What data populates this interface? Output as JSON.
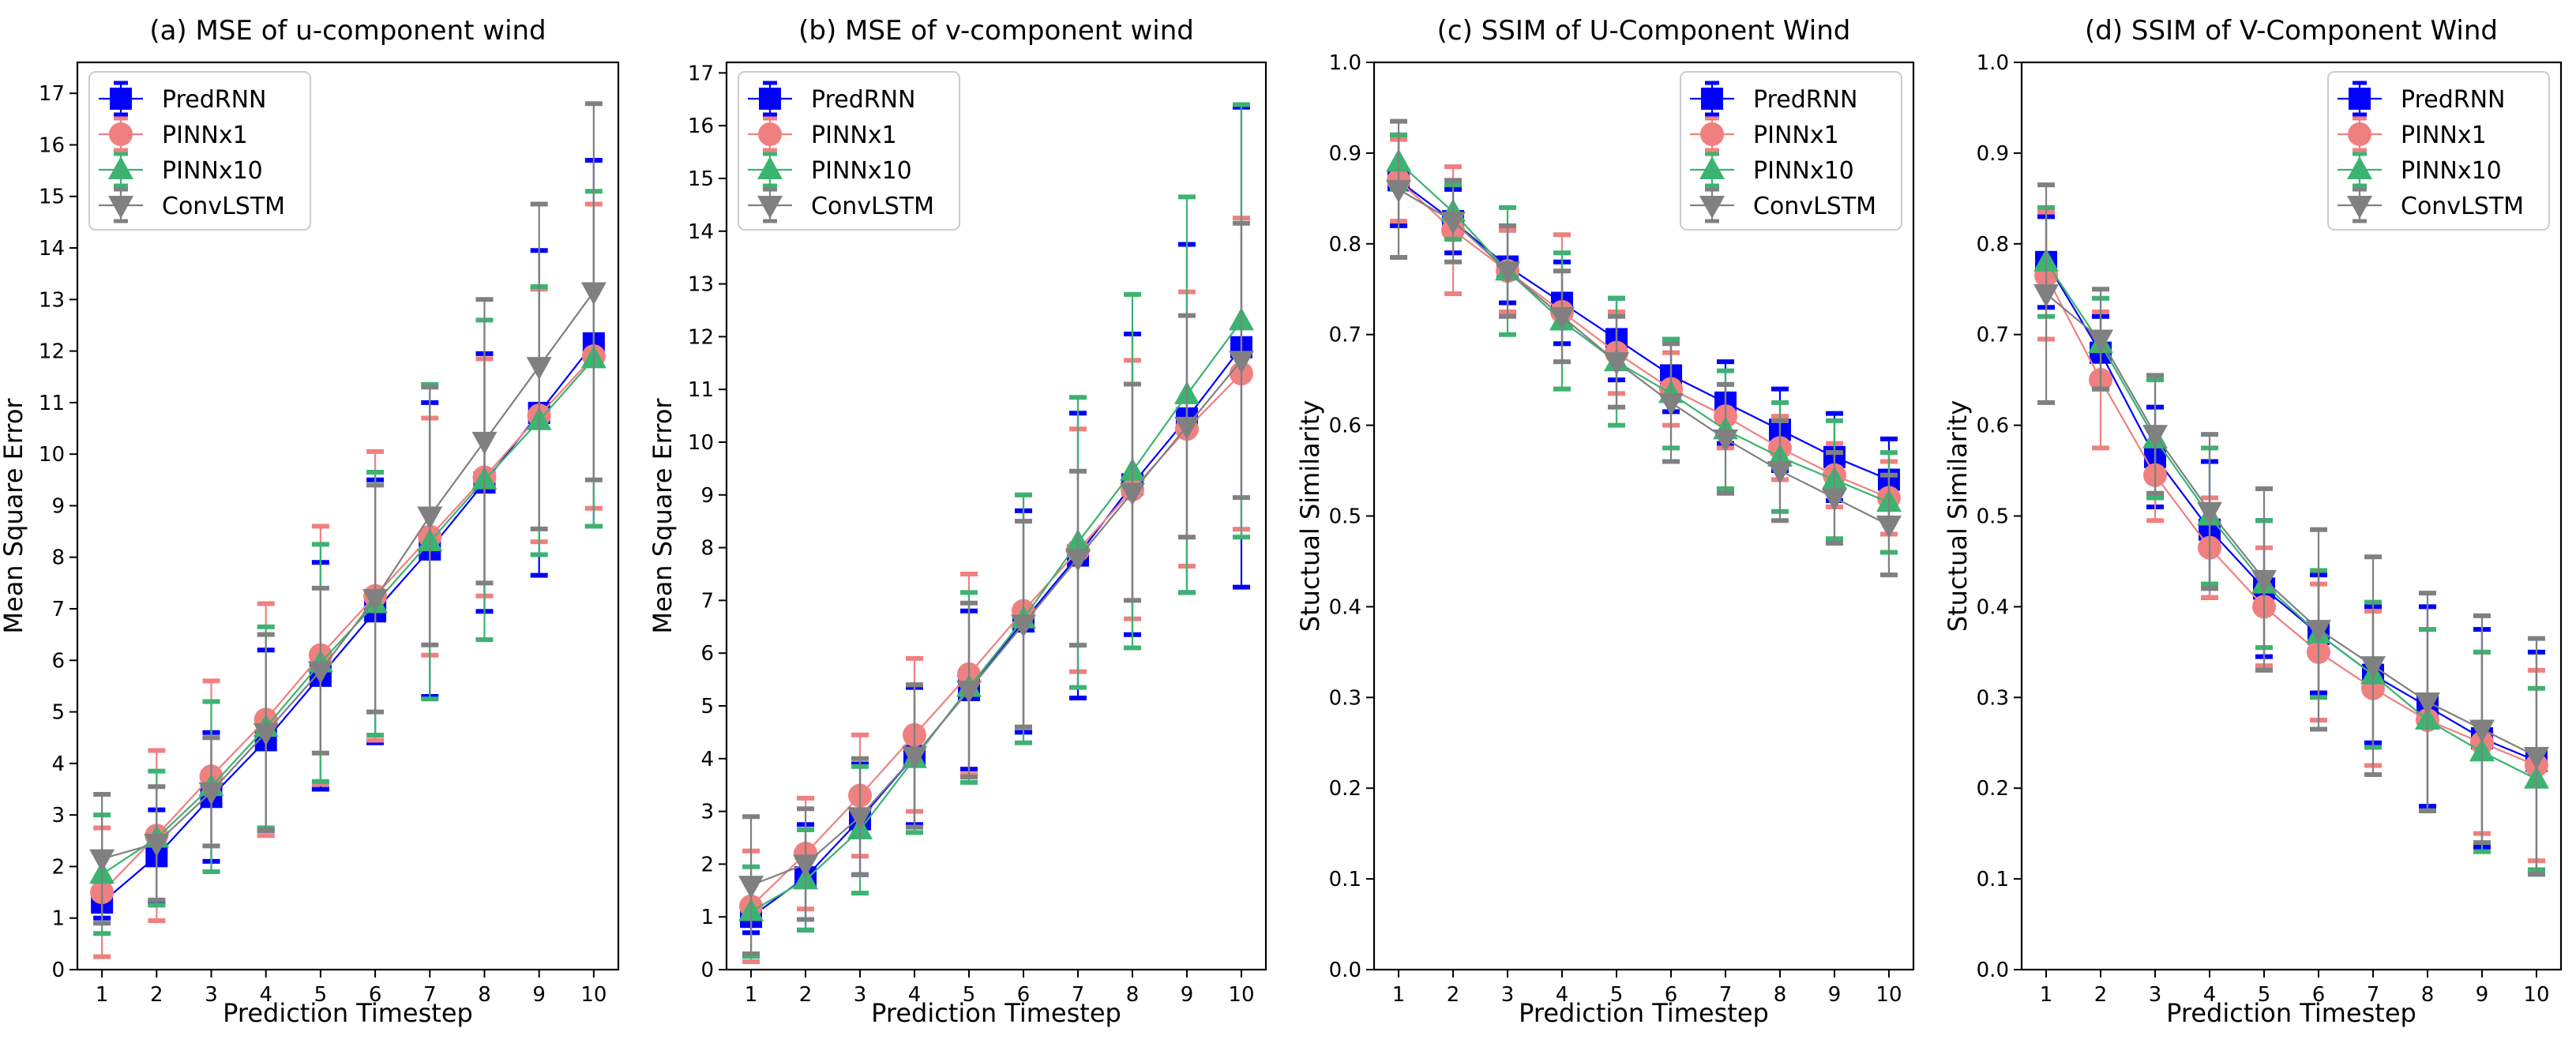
{
  "colors": {
    "PredRNN": "#0000ff",
    "PINNx1": "#f08080",
    "PINNx10": "#3cb371",
    "ConvLSTM": "#808080"
  },
  "chart_data": [
    {
      "type": "line",
      "title": "(a) MSE of u-component wind",
      "xlabel": "Prediction Timestep",
      "ylabel": "Mean Square Error",
      "xlim": [
        0.55,
        10.45
      ],
      "ylim": [
        0,
        17.6
      ],
      "xticks": [
        1,
        2,
        3,
        4,
        5,
        6,
        7,
        8,
        9,
        10
      ],
      "yticks": [
        0,
        1,
        2,
        3,
        4,
        5,
        6,
        7,
        8,
        9,
        10,
        11,
        12,
        13,
        14,
        15,
        16,
        17
      ],
      "legend_position": "upper-left",
      "x": [
        1,
        2,
        3,
        4,
        5,
        6,
        7,
        8,
        9,
        10
      ],
      "series": [
        {
          "name": "PredRNN",
          "marker": "square",
          "values": [
            1.3,
            2.2,
            3.35,
            4.45,
            5.7,
            6.95,
            8.15,
            9.45,
            10.8,
            12.15
          ],
          "errors": [
            0.3,
            0.9,
            1.25,
            1.75,
            2.2,
            2.55,
            2.85,
            2.5,
            3.15,
            3.55
          ]
        },
        {
          "name": "PINNx1",
          "marker": "circle",
          "values": [
            1.5,
            2.6,
            3.75,
            4.85,
            6.1,
            7.25,
            8.4,
            9.55,
            10.75,
            11.9
          ],
          "errors": [
            1.25,
            1.65,
            1.85,
            2.25,
            2.5,
            2.8,
            2.3,
            2.3,
            2.45,
            2.95
          ]
        },
        {
          "name": "PINNx10",
          "marker": "triangle-up",
          "values": [
            1.85,
            2.55,
            3.55,
            4.7,
            5.95,
            7.1,
            8.3,
            9.5,
            10.65,
            11.85
          ],
          "errors": [
            1.15,
            1.3,
            1.65,
            1.95,
            2.3,
            2.55,
            3.05,
            3.1,
            2.6,
            3.25
          ]
        },
        {
          "name": "ConvLSTM",
          "marker": "triangle-down",
          "values": [
            2.15,
            2.45,
            3.45,
            4.6,
            5.8,
            7.2,
            8.8,
            10.25,
            11.7,
            13.15
          ],
          "errors": [
            1.25,
            1.1,
            1.05,
            1.9,
            1.6,
            2.2,
            2.5,
            2.75,
            3.15,
            3.65
          ]
        }
      ]
    },
    {
      "type": "line",
      "title": "(b) MSE of v-component wind",
      "xlabel": "Prediction Timestep",
      "ylabel": "Mean Square Error",
      "xlim": [
        0.55,
        10.45
      ],
      "ylim": [
        0,
        17.2
      ],
      "xticks": [
        1,
        2,
        3,
        4,
        5,
        6,
        7,
        8,
        9,
        10
      ],
      "yticks": [
        0,
        1,
        2,
        3,
        4,
        5,
        6,
        7,
        8,
        9,
        10,
        11,
        12,
        13,
        14,
        15,
        16,
        17
      ],
      "legend_position": "upper-left",
      "x": [
        1,
        2,
        3,
        4,
        5,
        6,
        7,
        8,
        9,
        10
      ],
      "series": [
        {
          "name": "PredRNN",
          "marker": "square",
          "values": [
            1.0,
            1.75,
            2.85,
            4.05,
            5.3,
            6.6,
            7.85,
            9.2,
            10.45,
            11.8
          ],
          "errors": [
            0.3,
            1.0,
            1.05,
            1.3,
            1.5,
            2.1,
            2.7,
            2.85,
            3.3,
            4.55
          ]
        },
        {
          "name": "PINNx1",
          "marker": "circle",
          "values": [
            1.2,
            2.2,
            3.3,
            4.45,
            5.6,
            6.8,
            7.95,
            9.1,
            10.25,
            11.3
          ],
          "errors": [
            1.05,
            1.05,
            1.15,
            1.45,
            1.9,
            2.2,
            2.3,
            2.45,
            2.6,
            2.95
          ]
        },
        {
          "name": "PINNx10",
          "marker": "triangle-up",
          "values": [
            1.1,
            1.7,
            2.65,
            4.0,
            5.35,
            6.65,
            8.1,
            9.45,
            10.9,
            12.3
          ],
          "errors": [
            0.85,
            0.95,
            1.2,
            1.4,
            1.8,
            2.35,
            2.75,
            3.35,
            3.75,
            4.1
          ]
        },
        {
          "name": "ConvLSTM",
          "marker": "triangle-down",
          "values": [
            1.6,
            2.0,
            2.9,
            4.05,
            5.3,
            6.55,
            7.8,
            9.05,
            10.3,
            11.55
          ],
          "errors": [
            1.3,
            1.05,
            1.1,
            1.35,
            1.65,
            1.95,
            1.65,
            2.05,
            2.1,
            2.6
          ]
        }
      ]
    },
    {
      "type": "line",
      "title": "(c) SSIM of U-Component Wind",
      "xlabel": "Prediction Timestep",
      "ylabel": "Stuctual Similarity",
      "xlim": [
        0.55,
        10.45
      ],
      "ylim": [
        0,
        1.0
      ],
      "xticks": [
        1,
        2,
        3,
        4,
        5,
        6,
        7,
        8,
        9,
        10
      ],
      "yticks": [
        0.0,
        0.1,
        0.2,
        0.3,
        0.4,
        0.5,
        0.6,
        0.7,
        0.8,
        0.9,
        1.0
      ],
      "legend_position": "upper-right",
      "x": [
        1,
        2,
        3,
        4,
        5,
        6,
        7,
        8,
        9,
        10
      ],
      "series": [
        {
          "name": "PredRNN",
          "marker": "square",
          "values": [
            0.87,
            0.825,
            0.775,
            0.735,
            0.695,
            0.655,
            0.625,
            0.595,
            0.565,
            0.54
          ],
          "errors": [
            0.05,
            0.035,
            0.04,
            0.045,
            0.045,
            0.04,
            0.045,
            0.045,
            0.048,
            0.045
          ]
        },
        {
          "name": "PINNx1",
          "marker": "circle",
          "values": [
            0.87,
            0.815,
            0.77,
            0.725,
            0.68,
            0.64,
            0.61,
            0.575,
            0.545,
            0.52
          ],
          "errors": [
            0.045,
            0.07,
            0.045,
            0.085,
            0.045,
            0.04,
            0.035,
            0.035,
            0.035,
            0.04
          ]
        },
        {
          "name": "PINNx10",
          "marker": "triangle-up",
          "values": [
            0.89,
            0.835,
            0.77,
            0.715,
            0.67,
            0.635,
            0.595,
            0.565,
            0.54,
            0.515
          ],
          "errors": [
            0.03,
            0.03,
            0.07,
            0.075,
            0.07,
            0.06,
            0.065,
            0.06,
            0.065,
            0.055
          ]
        },
        {
          "name": "ConvLSTM",
          "marker": "triangle-down",
          "values": [
            0.86,
            0.825,
            0.77,
            0.72,
            0.67,
            0.625,
            0.585,
            0.55,
            0.52,
            0.49
          ],
          "errors": [
            0.075,
            0.045,
            0.05,
            0.05,
            0.05,
            0.065,
            0.06,
            0.055,
            0.05,
            0.055
          ]
        }
      ]
    },
    {
      "type": "line",
      "title": "(d) SSIM of V-Component Wind",
      "xlabel": "Prediction Timestep",
      "ylabel": "Stuctual Similarity",
      "xlim": [
        0.55,
        10.45
      ],
      "ylim": [
        0,
        1.0
      ],
      "xticks": [
        1,
        2,
        3,
        4,
        5,
        6,
        7,
        8,
        9,
        10
      ],
      "yticks": [
        0.0,
        0.1,
        0.2,
        0.3,
        0.4,
        0.5,
        0.6,
        0.7,
        0.8,
        0.9,
        1.0
      ],
      "legend_position": "upper-right",
      "x": [
        1,
        2,
        3,
        4,
        5,
        6,
        7,
        8,
        9,
        10
      ],
      "series": [
        {
          "name": "PredRNN",
          "marker": "square",
          "values": [
            0.78,
            0.68,
            0.565,
            0.485,
            0.42,
            0.37,
            0.325,
            0.29,
            0.255,
            0.23
          ],
          "errors": [
            0.05,
            0.04,
            0.055,
            0.075,
            0.075,
            0.065,
            0.075,
            0.11,
            0.12,
            0.12
          ]
        },
        {
          "name": "PINNx1",
          "marker": "circle",
          "values": [
            0.765,
            0.65,
            0.545,
            0.465,
            0.4,
            0.35,
            0.31,
            0.275,
            0.25,
            0.225
          ],
          "errors": [
            0.07,
            0.075,
            0.05,
            0.055,
            0.065,
            0.075,
            0.085,
            0.1,
            0.1,
            0.105
          ]
        },
        {
          "name": "PINNx10",
          "marker": "triangle-up",
          "values": [
            0.78,
            0.69,
            0.585,
            0.5,
            0.425,
            0.37,
            0.325,
            0.275,
            0.24,
            0.21
          ],
          "errors": [
            0.06,
            0.05,
            0.065,
            0.075,
            0.07,
            0.07,
            0.08,
            0.1,
            0.11,
            0.1
          ]
        },
        {
          "name": "ConvLSTM",
          "marker": "triangle-down",
          "values": [
            0.745,
            0.695,
            0.59,
            0.505,
            0.43,
            0.375,
            0.335,
            0.295,
            0.265,
            0.235
          ],
          "errors": [
            0.12,
            0.055,
            0.065,
            0.085,
            0.1,
            0.11,
            0.12,
            0.12,
            0.125,
            0.13
          ]
        }
      ]
    }
  ]
}
